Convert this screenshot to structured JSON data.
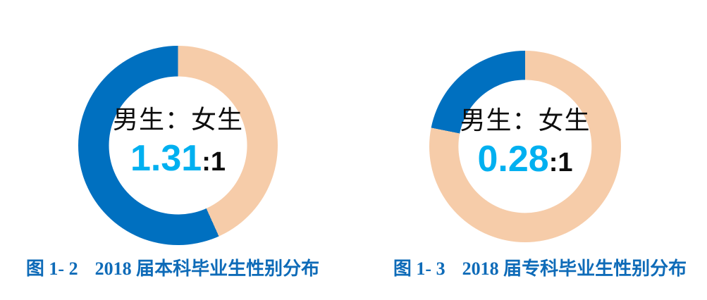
{
  "colors": {
    "male_blue": "#0070C0",
    "female_peach": "#F6CCA9",
    "ratio_number_cyan": "#00B0F0",
    "center_text_black": "#0d0d0d",
    "caption_blue": "#0E6BB8",
    "background": "#ffffff"
  },
  "charts": [
    {
      "center_label": "男生：女生",
      "ratio_value": "1.31",
      "ratio_suffix": ":1",
      "caption_number": "图 1- 2",
      "caption_title": "2018 届本科毕业生性别分布"
    },
    {
      "center_label": "男生：女生",
      "ratio_value": "0.28",
      "ratio_suffix": ":1",
      "caption_number": "图 1- 3",
      "caption_title": "2018 届专科毕业生性别分布"
    }
  ],
  "chart_data": [
    {
      "type": "pie",
      "subtype": "donut",
      "title": "图 1- 2 2018 届本科毕业生性别分布",
      "center_label": "男生：女生",
      "ratio_text": "1.31:1",
      "male_to_female_ratio": 1.31,
      "hole_ratio": 0.696,
      "legend": false,
      "slices": [
        {
          "label": "男生",
          "value": 1.31,
          "fraction": 0.567,
          "start_deg": 155.8,
          "end_deg": 360,
          "color": "#0070C0"
        },
        {
          "label": "女生",
          "value": 1.0,
          "fraction": 0.433,
          "start_deg": 0,
          "end_deg": 155.8,
          "color": "#F6CCA9"
        }
      ],
      "rotation_note": "degrees measured clockwise from 12 o'clock"
    },
    {
      "type": "pie",
      "subtype": "donut",
      "title": "图 1- 3 2018 届专科毕业生性别分布",
      "center_label": "男生：女生",
      "ratio_text": "0.28:1",
      "male_to_female_ratio": 0.28,
      "hole_ratio": 0.696,
      "legend": false,
      "slices": [
        {
          "label": "男生",
          "value": 0.28,
          "fraction": 0.219,
          "start_deg": 281.3,
          "end_deg": 360,
          "color": "#0070C0"
        },
        {
          "label": "女生",
          "value": 1.0,
          "fraction": 0.781,
          "start_deg": 0,
          "end_deg": 281.3,
          "color": "#F6CCA9"
        }
      ],
      "rotation_note": "degrees measured clockwise from 12 o'clock"
    }
  ]
}
